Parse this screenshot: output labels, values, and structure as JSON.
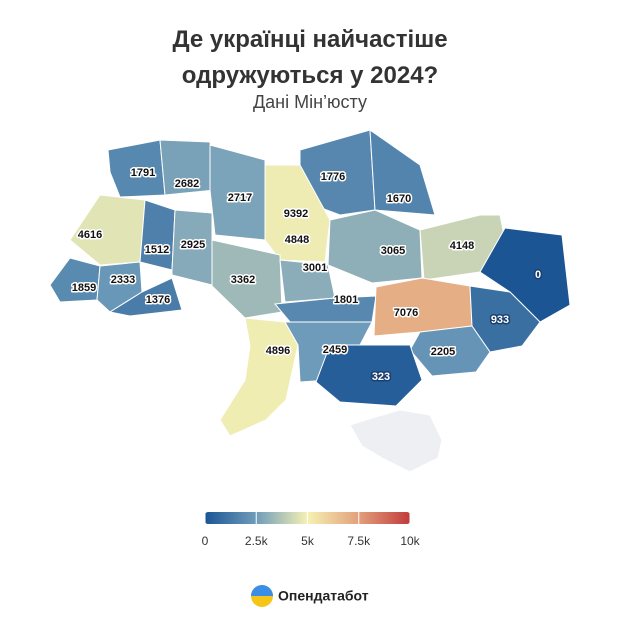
{
  "chart_data": {
    "type": "choropleth",
    "title": "Де українці найчастіше одружуються у 2024?",
    "subtitle": "Дані Мін’юсту",
    "values": [
      1791,
      2682,
      2717,
      1776,
      1670,
      4616,
      1512,
      2925,
      9392,
      4848,
      3065,
      4148,
      0,
      1859,
      2333,
      1376,
      3362,
      3001,
      1801,
      7076,
      933,
      4896,
      2459,
      2205,
      323
    ],
    "colorscale": [
      "#1b5594",
      "#6f9cba",
      "#f6f1b3",
      "#e2a07b",
      "#c13a3c"
    ],
    "clim": [
      0,
      10000
    ],
    "cticks": [
      0,
      {
        "value": 2500,
        "label": "2.5k"
      },
      {
        "value": 5000,
        "label": "5k"
      },
      {
        "value": 7500,
        "label": "7.5k"
      },
      {
        "value": 10000,
        "label": "10k"
      }
    ]
  },
  "brand": "Опендатабот"
}
